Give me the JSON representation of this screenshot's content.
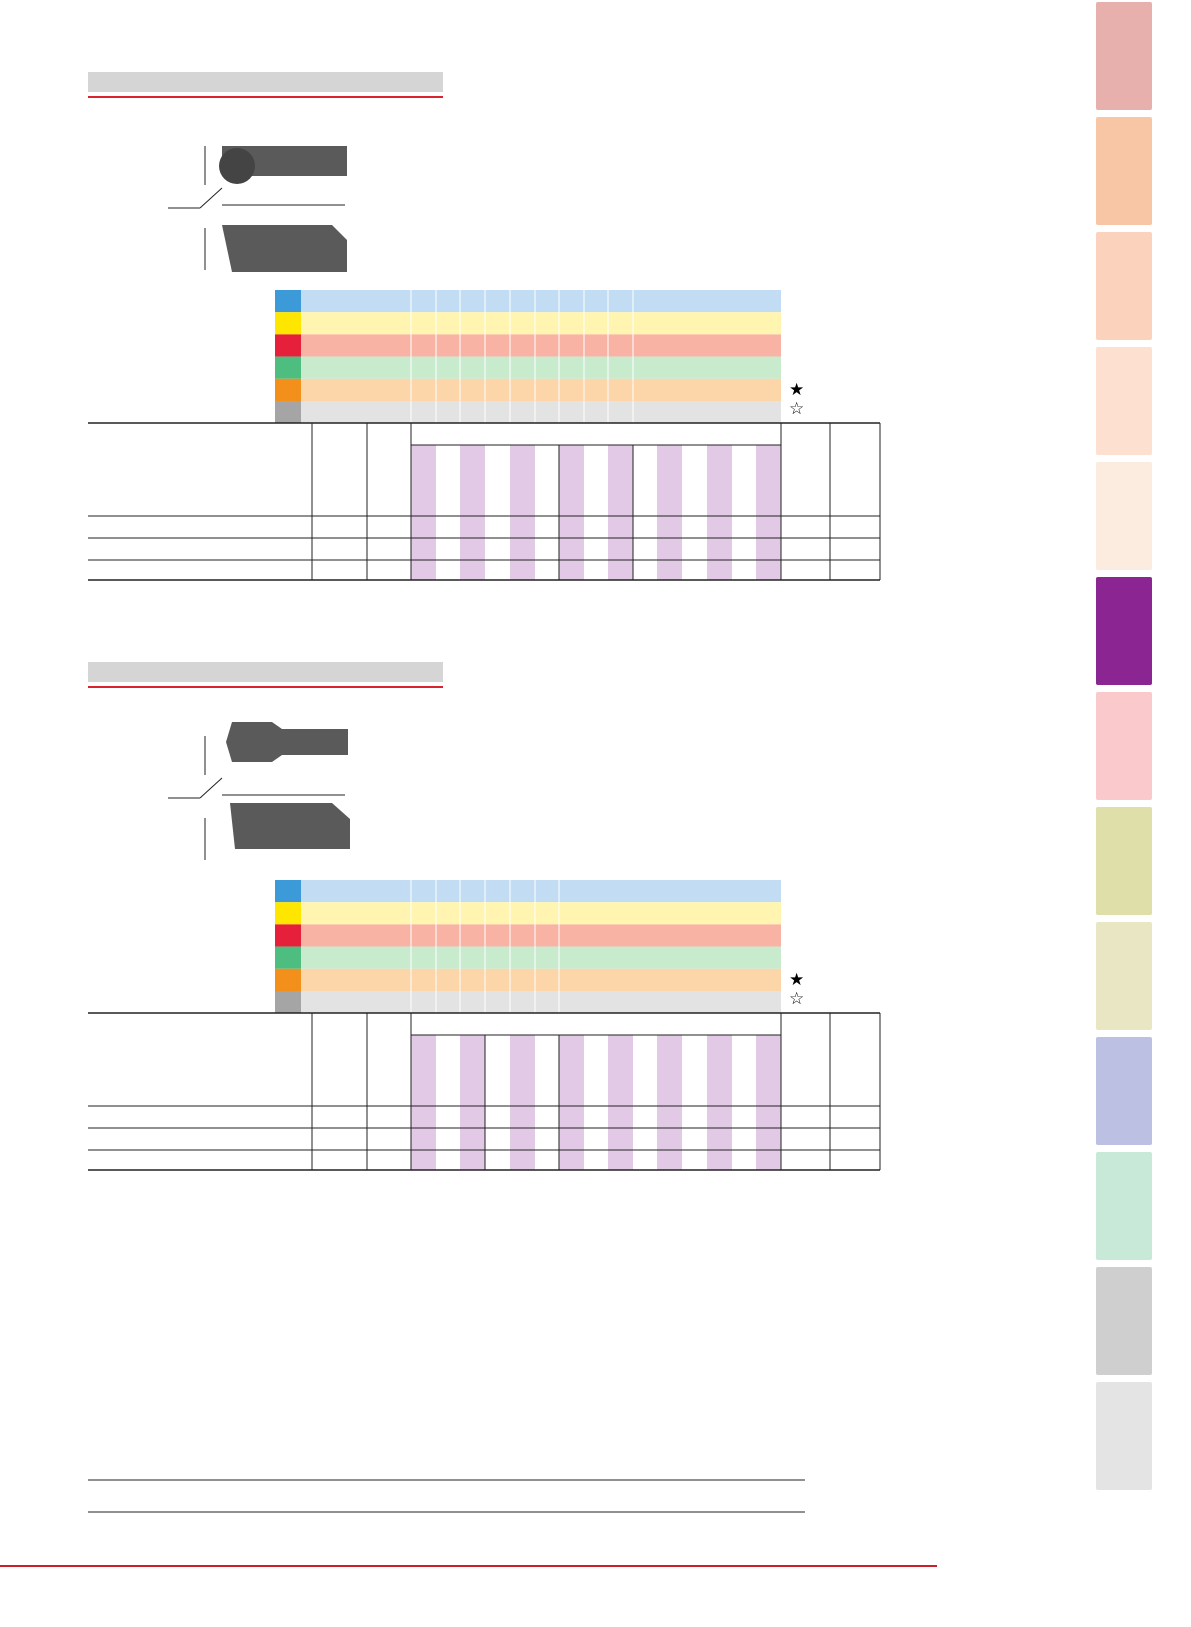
{
  "sections": [
    {
      "legend": [
        "★",
        "☆"
      ]
    },
    {
      "legend": [
        "★",
        "☆"
      ]
    }
  ]
}
